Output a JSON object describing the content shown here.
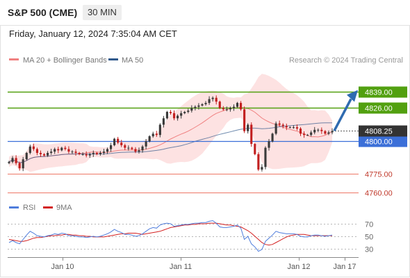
{
  "header": {
    "title": "S&P 500 (CME)",
    "timeframe": "30 MIN",
    "datetime": "Friday, January 12, 2024 7:35:04 AM CET"
  },
  "colors": {
    "support": "#3b6fd8",
    "resistance": "#52a010",
    "lower_level": "#ee7766",
    "bull_candle": "#3a3a3a",
    "bear_candle": "#c21f1f",
    "ma20": "#f08080",
    "band_fill": "#fde2e2",
    "ma50": "#30598c",
    "rsi": "#4f7ddc",
    "rsi9ma": "#d42020",
    "arrow": "#2f6bb0"
  },
  "chart_data": [
    {
      "type": "candlestick",
      "title": "S&P 500 (CME)",
      "timeframe": "30 MIN",
      "legend": [
        {
          "name": "MA 20 + Bollinger Bands",
          "color": "#f08080"
        },
        {
          "name": "MA 50",
          "color": "#30598c"
        }
      ],
      "legend_position": "top-left",
      "source": "Research © 2024 Trading Central",
      "x_ticks": [
        "Jan 10",
        "Jan 11",
        "Jan 12",
        "Jan 17"
      ],
      "y_range": [
        4752,
        4846
      ],
      "last_price": 4808.25,
      "levels": [
        {
          "value": 4839.0,
          "label": "4839.00",
          "kind": "resistance"
        },
        {
          "value": 4826.0,
          "label": "4826.00",
          "kind": "resistance"
        },
        {
          "value": 4800.0,
          "label": "4800.00",
          "kind": "support"
        },
        {
          "value": 4775.0,
          "label": "4775.00",
          "kind": "support"
        },
        {
          "value": 4760.0,
          "label": "4760.00",
          "kind": "support"
        }
      ],
      "projection": {
        "from": 4808.25,
        "to": 4839.0,
        "direction": "up"
      },
      "closes": [
        4784,
        4787,
        4783,
        4779,
        4786,
        4791,
        4796,
        4794,
        4791,
        4790,
        4789,
        4791,
        4792,
        4794,
        4793,
        4795,
        4794,
        4792,
        4792,
        4791,
        4790,
        4790,
        4789,
        4790,
        4791,
        4790,
        4791,
        4792,
        4794,
        4797,
        4802,
        4799,
        4797,
        4795,
        4795,
        4794,
        4792,
        4793,
        4796,
        4800,
        4804,
        4806,
        4805,
        4813,
        4818,
        4823,
        4822,
        4818,
        4820,
        4822,
        4823,
        4824,
        4826,
        4827,
        4828,
        4829,
        4830,
        4833,
        4834,
        4831,
        4826,
        4825,
        4825,
        4826,
        4827,
        4830,
        4825,
        4808,
        4813,
        4798,
        4790,
        4778,
        4780,
        4795,
        4800,
        4806,
        4814,
        4813,
        4812,
        4811,
        4811,
        4811,
        4810,
        4806,
        4805,
        4805,
        4807,
        4809,
        4809,
        4808,
        4806,
        4807,
        4808
      ]
    },
    {
      "type": "line",
      "legend": [
        {
          "name": "RSI",
          "color": "#4f7ddc"
        },
        {
          "name": "9MA",
          "color": "#d42020"
        }
      ],
      "y_ticks": [
        70,
        50,
        30
      ],
      "y_range": [
        20,
        80
      ],
      "series": [
        {
          "name": "RSI",
          "values": [
            40,
            43,
            40,
            38,
            45,
            52,
            58,
            55,
            51,
            50,
            49,
            51,
            52,
            54,
            53,
            55,
            54,
            51,
            51,
            50,
            49,
            49,
            48,
            49,
            50,
            49,
            50,
            52,
            54,
            57,
            61,
            58,
            56,
            53,
            53,
            52,
            50,
            51,
            54,
            58,
            62,
            64,
            63,
            68,
            70,
            71,
            70,
            66,
            67,
            68,
            69,
            69,
            70,
            71,
            71,
            72,
            72,
            74,
            75,
            71,
            65,
            64,
            64,
            65,
            66,
            68,
            63,
            45,
            50,
            38,
            33,
            26,
            29,
            42,
            47,
            52,
            58,
            56,
            55,
            54,
            54,
            54,
            53,
            50,
            49,
            49,
            51,
            52,
            52,
            51,
            50,
            51,
            52
          ]
        },
        {
          "name": "9MA",
          "values": [
            45,
            44,
            43,
            42,
            42,
            43,
            45,
            47,
            48,
            48,
            49,
            50,
            51,
            51,
            52,
            52,
            53,
            53,
            52,
            52,
            51,
            51,
            50,
            50,
            49,
            49,
            49,
            49,
            50,
            51,
            52,
            53,
            54,
            54,
            55,
            55,
            55,
            54,
            53,
            54,
            55,
            56,
            57,
            58,
            60,
            62,
            64,
            65,
            66,
            67,
            68,
            68,
            69,
            69,
            70,
            70,
            70,
            71,
            71,
            71,
            70,
            69,
            68,
            68,
            67,
            66,
            65,
            62,
            59,
            55,
            50,
            45,
            40,
            37,
            36,
            37,
            40,
            43,
            46,
            49,
            51,
            52,
            53,
            53,
            53,
            52,
            51,
            51,
            51,
            51,
            51,
            51,
            51
          ]
        }
      ]
    }
  ]
}
